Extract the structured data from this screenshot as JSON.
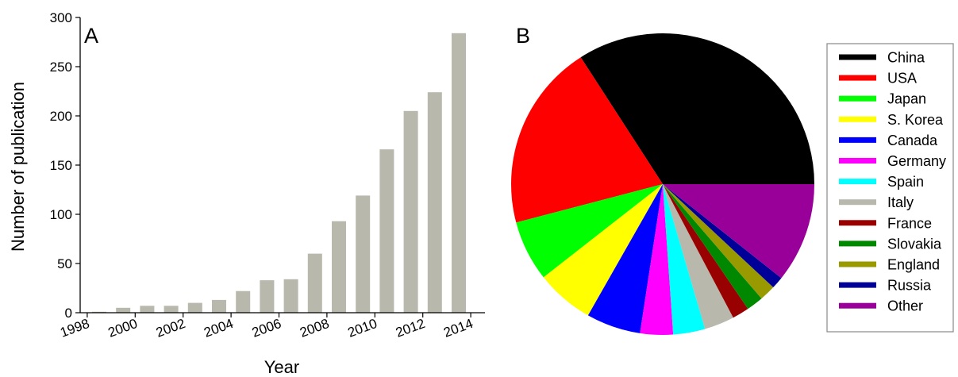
{
  "chart_data": [
    {
      "type": "bar",
      "panel_label": "A",
      "xlabel": "Year",
      "ylabel": "Number of publication",
      "ylim": [
        0,
        300
      ],
      "yticks": [
        "0",
        "50",
        "100",
        "150",
        "200",
        "250",
        "300"
      ],
      "xtick_labels": [
        "1998",
        "2000",
        "2002",
        "2004",
        "2006",
        "2008",
        "2010",
        "2012",
        "2014"
      ],
      "categories": [
        "1998",
        "1999",
        "2000",
        "2001",
        "2002",
        "2003",
        "2004",
        "2005",
        "2006",
        "2007",
        "2008",
        "2009",
        "2010",
        "2011",
        "2012",
        "2013"
      ],
      "values": [
        1,
        5,
        7,
        7,
        10,
        13,
        22,
        33,
        34,
        60,
        93,
        119,
        166,
        205,
        224,
        284
      ],
      "bar_color": "#b8b8ac",
      "grid": false
    },
    {
      "type": "pie",
      "panel_label": "B",
      "legend_position": "right",
      "start": "3 o'clock, counter-clockwise",
      "slices": [
        {
          "label": "China",
          "value": 0.341,
          "color": "#000000"
        },
        {
          "label": "USA",
          "value": 0.2,
          "color": "#ff0000"
        },
        {
          "label": "Japan",
          "value": 0.065,
          "color": "#00ff00"
        },
        {
          "label": "S. Korea",
          "value": 0.062,
          "color": "#ffff00"
        },
        {
          "label": "Canada",
          "value": 0.058,
          "color": "#0000ff"
        },
        {
          "label": "Germany",
          "value": 0.035,
          "color": "#ff00ff"
        },
        {
          "label": "Spain",
          "value": 0.034,
          "color": "#00ffff"
        },
        {
          "label": "Italy",
          "value": 0.032,
          "color": "#b8b8ac"
        },
        {
          "label": "France",
          "value": 0.018,
          "color": "#990000"
        },
        {
          "label": "Slovakia",
          "value": 0.018,
          "color": "#008800"
        },
        {
          "label": "England",
          "value": 0.017,
          "color": "#999900"
        },
        {
          "label": "Russia",
          "value": 0.013,
          "color": "#000099"
        },
        {
          "label": "Other",
          "value": 0.107,
          "color": "#990099"
        }
      ]
    }
  ]
}
